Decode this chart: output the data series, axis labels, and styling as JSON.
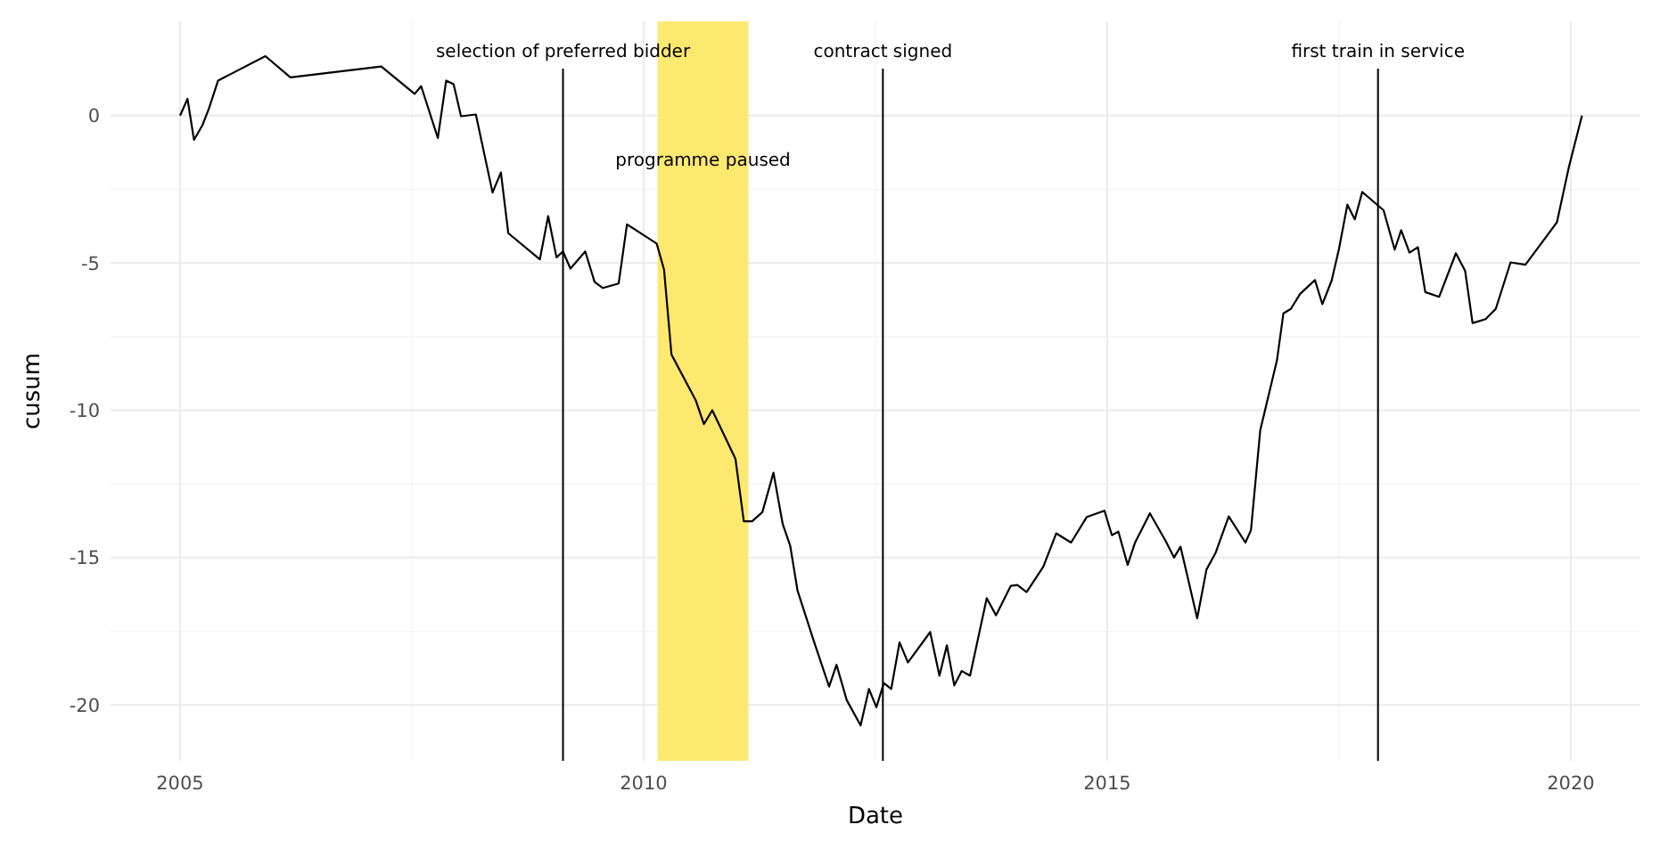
{
  "chart_data": {
    "type": "line",
    "xlabel": "Date",
    "ylabel": "cusum",
    "xlim": [
      2004.25,
      2020.75
    ],
    "ylim": [
      -21.9,
      3.2
    ],
    "xticks": [
      2005,
      2010,
      2015,
      2020
    ],
    "yticks": [
      -20,
      -15,
      -10,
      -5,
      0
    ],
    "grid": true,
    "series": [
      {
        "color": "#000000",
        "x": [
          2005.0,
          2005.08,
          2005.15,
          2005.24,
          2005.31,
          2005.41,
          2005.92,
          2006.19,
          2007.17,
          2007.53,
          2007.6,
          2007.78,
          2007.87,
          2007.95,
          2008.03,
          2008.19,
          2008.37,
          2008.46,
          2008.54,
          2008.88,
          2008.97,
          2009.06,
          2009.13,
          2009.21,
          2009.37,
          2009.47,
          2009.56,
          2009.73,
          2009.82,
          2010.14,
          2010.22,
          2010.3,
          2010.56,
          2010.65,
          2010.74,
          2010.99,
          2011.08,
          2011.17,
          2011.28,
          2011.4,
          2011.5,
          2011.58,
          2011.66,
          2011.84,
          2012.0,
          2012.08,
          2012.19,
          2012.34,
          2012.43,
          2012.51,
          2012.59,
          2012.67,
          2012.76,
          2012.85,
          2013.09,
          2013.19,
          2013.27,
          2013.35,
          2013.43,
          2013.52,
          2013.7,
          2013.8,
          2013.96,
          2014.03,
          2014.13,
          2014.31,
          2014.45,
          2014.61,
          2014.78,
          2014.97,
          2015.05,
          2015.12,
          2015.22,
          2015.3,
          2015.46,
          2015.63,
          2015.72,
          2015.79,
          2015.97,
          2016.07,
          2016.17,
          2016.31,
          2016.49,
          2016.55,
          2016.65,
          2016.83,
          2016.9,
          2016.98,
          2017.08,
          2017.24,
          2017.32,
          2017.42,
          2017.5,
          2017.59,
          2017.67,
          2017.75,
          2017.98,
          2018.1,
          2018.17,
          2018.26,
          2018.35,
          2018.43,
          2018.58,
          2018.76,
          2018.86,
          2018.94,
          2019.08,
          2019.19,
          2019.35,
          2019.51,
          2019.85,
          2019.98,
          2020.12
        ],
        "values": [
          0,
          0.57,
          -0.82,
          -0.33,
          0.23,
          1.19,
          2.02,
          1.3,
          1.67,
          0.74,
          1.0,
          -0.76,
          1.19,
          1.07,
          -0.02,
          0.04,
          -2.61,
          -1.93,
          -3.99,
          -4.88,
          -3.41,
          -4.81,
          -4.61,
          -5.19,
          -4.61,
          -5.64,
          -5.85,
          -5.7,
          -3.69,
          -4.34,
          -5.23,
          -8.11,
          -9.65,
          -10.47,
          -10.0,
          -11.65,
          -13.77,
          -13.77,
          -13.46,
          -12.12,
          -13.87,
          -14.59,
          -16.13,
          -17.88,
          -19.38,
          -18.64,
          -19.84,
          -20.7,
          -19.46,
          -20.08,
          -19.26,
          -19.46,
          -17.88,
          -18.56,
          -17.53,
          -19.01,
          -17.98,
          -19.34,
          -18.85,
          -19.01,
          -16.38,
          -16.96,
          -15.96,
          -15.93,
          -16.17,
          -15.31,
          -14.18,
          -14.49,
          -13.62,
          -13.41,
          -14.24,
          -14.12,
          -15.25,
          -14.49,
          -13.5,
          -14.44,
          -15.0,
          -14.63,
          -17.06,
          -15.41,
          -14.83,
          -13.6,
          -14.49,
          -14.07,
          -10.68,
          -8.31,
          -6.71,
          -6.56,
          -6.05,
          -5.58,
          -6.4,
          -5.6,
          -4.51,
          -3.02,
          -3.52,
          -2.59,
          -3.21,
          -4.55,
          -3.89,
          -4.65,
          -4.46,
          -5.99,
          -6.15,
          -4.67,
          -5.27,
          -7.04,
          -6.91,
          -6.56,
          -4.98,
          -5.06,
          -3.62,
          -1.73,
          0
        ]
      }
    ],
    "ref_lines": [
      {
        "axis": "x",
        "value": 2009.13,
        "label": "selection of preferred bidder",
        "color": "#000000"
      },
      {
        "axis": "x",
        "value": 2012.58,
        "label": "contract signed",
        "color": "#000000"
      },
      {
        "axis": "x",
        "value": 2017.92,
        "label": "first train in service",
        "color": "#000000"
      }
    ],
    "bands": [
      {
        "axis": "x",
        "from": 2010.15,
        "to": 2011.13,
        "label": "programme paused",
        "color": "#fde870"
      }
    ]
  }
}
